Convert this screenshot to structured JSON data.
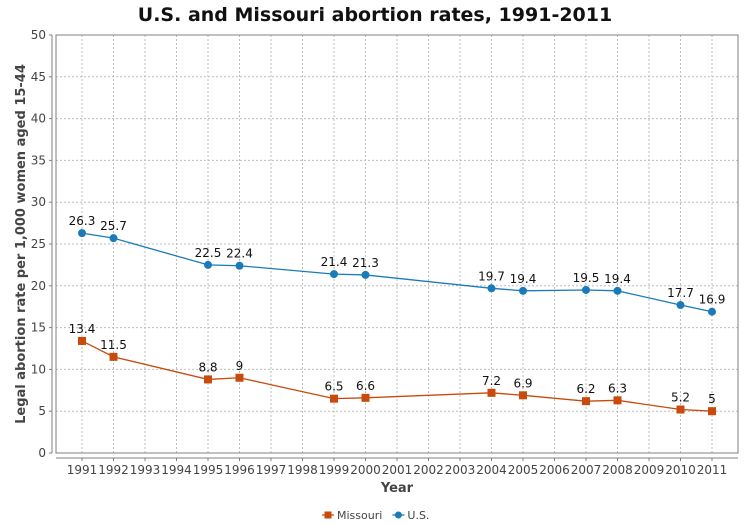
{
  "chart_data": {
    "type": "line",
    "title": "U.S. and Missouri abortion rates, 1991-2011",
    "xlabel": "Year",
    "ylabel": "Legal abortion rate per 1,000 women aged 15-44",
    "x_ticks": [
      1991,
      1992,
      1993,
      1994,
      1995,
      1996,
      1997,
      1998,
      1999,
      2000,
      2001,
      2002,
      2003,
      2004,
      2005,
      2006,
      2007,
      2008,
      2009,
      2010,
      2011
    ],
    "y_ticks": [
      0,
      5,
      10,
      15,
      20,
      25,
      30,
      35,
      40,
      45,
      50
    ],
    "xlim": [
      1991,
      2011
    ],
    "ylim": [
      0,
      50
    ],
    "grid": true,
    "legend_position": "bottom-center",
    "series": [
      {
        "name": "Missouri",
        "color": "#c84a0c",
        "marker": "square",
        "x": [
          1991,
          1992,
          1995,
          1996,
          1999,
          2000,
          2004,
          2005,
          2007,
          2008,
          2010,
          2011
        ],
        "values": [
          13.4,
          11.5,
          8.8,
          9,
          6.5,
          6.6,
          7.2,
          6.9,
          6.2,
          6.3,
          5.2,
          5
        ],
        "labels": [
          "13.4",
          "11.5",
          "8.8",
          "9",
          "6.5",
          "6.6",
          "7.2",
          "6.9",
          "6.2",
          "6.3",
          "5.2",
          "5"
        ]
      },
      {
        "name": "U.S.",
        "color": "#1a7bb9",
        "marker": "circle",
        "x": [
          1991,
          1992,
          1995,
          1996,
          1999,
          2000,
          2004,
          2005,
          2007,
          2008,
          2010,
          2011
        ],
        "values": [
          26.3,
          25.7,
          22.5,
          22.4,
          21.4,
          21.3,
          19.7,
          19.4,
          19.5,
          19.4,
          17.7,
          16.9
        ],
        "labels": [
          "26.3",
          "25.7",
          "22.5",
          "22.4",
          "21.4",
          "21.3",
          "19.7",
          "19.4",
          "19.5",
          "19.4",
          "17.7",
          "16.9"
        ]
      }
    ]
  }
}
